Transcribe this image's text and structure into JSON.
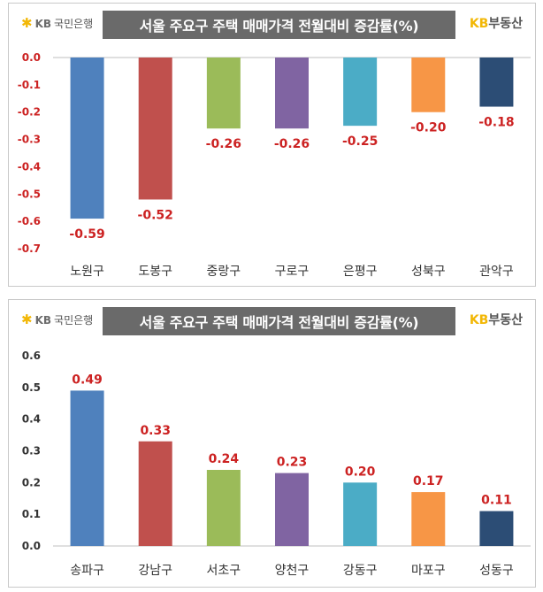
{
  "branding": {
    "bank_kb": "KB",
    "bank_name": "국민은행",
    "realty_kb": "KB",
    "realty_name": "부동산"
  },
  "colors": {
    "negative_label": "#cc2222",
    "positive_label": "#cc2222",
    "negative_tick": "#cc2222",
    "positive_tick": "#333333"
  },
  "chart_data": [
    {
      "type": "bar",
      "title": "서울 주요구 주택 매매가격 전월대비 증감률(%)",
      "categories": [
        "노원구",
        "도봉구",
        "중랑구",
        "구로구",
        "은평구",
        "성북구",
        "관악구"
      ],
      "values": [
        -0.59,
        -0.52,
        -0.26,
        -0.26,
        -0.25,
        -0.2,
        -0.18
      ],
      "value_labels": [
        "-0.59",
        "-0.52",
        "-0.26",
        "-0.26",
        "-0.25",
        "-0.20",
        "-0.18"
      ],
      "bar_colors": [
        "#4f81bd",
        "#c0504d",
        "#9bbb59",
        "#8064a2",
        "#4bacc6",
        "#f79646",
        "#2c4d75"
      ],
      "ylim": [
        -0.7,
        0.0
      ],
      "yticks": [
        "0.0",
        "-0.1",
        "-0.2",
        "-0.3",
        "-0.4",
        "-0.5",
        "-0.6",
        "-0.7"
      ],
      "xlabel": "",
      "ylabel": "",
      "grid": false
    },
    {
      "type": "bar",
      "title": "서울 주요구 주택 매매가격 전월대비 증감률(%)",
      "categories": [
        "송파구",
        "강남구",
        "서초구",
        "양천구",
        "강동구",
        "마포구",
        "성동구"
      ],
      "values": [
        0.49,
        0.33,
        0.24,
        0.23,
        0.2,
        0.17,
        0.11
      ],
      "value_labels": [
        "0.49",
        "0.33",
        "0.24",
        "0.23",
        "0.20",
        "0.17",
        "0.11"
      ],
      "bar_colors": [
        "#4f81bd",
        "#c0504d",
        "#9bbb59",
        "#8064a2",
        "#4bacc6",
        "#f79646",
        "#2c4d75"
      ],
      "ylim": [
        0.0,
        0.6
      ],
      "yticks": [
        "0.6",
        "0.5",
        "0.4",
        "0.3",
        "0.2",
        "0.1",
        "0.0"
      ],
      "xlabel": "",
      "ylabel": "",
      "grid": false
    }
  ]
}
